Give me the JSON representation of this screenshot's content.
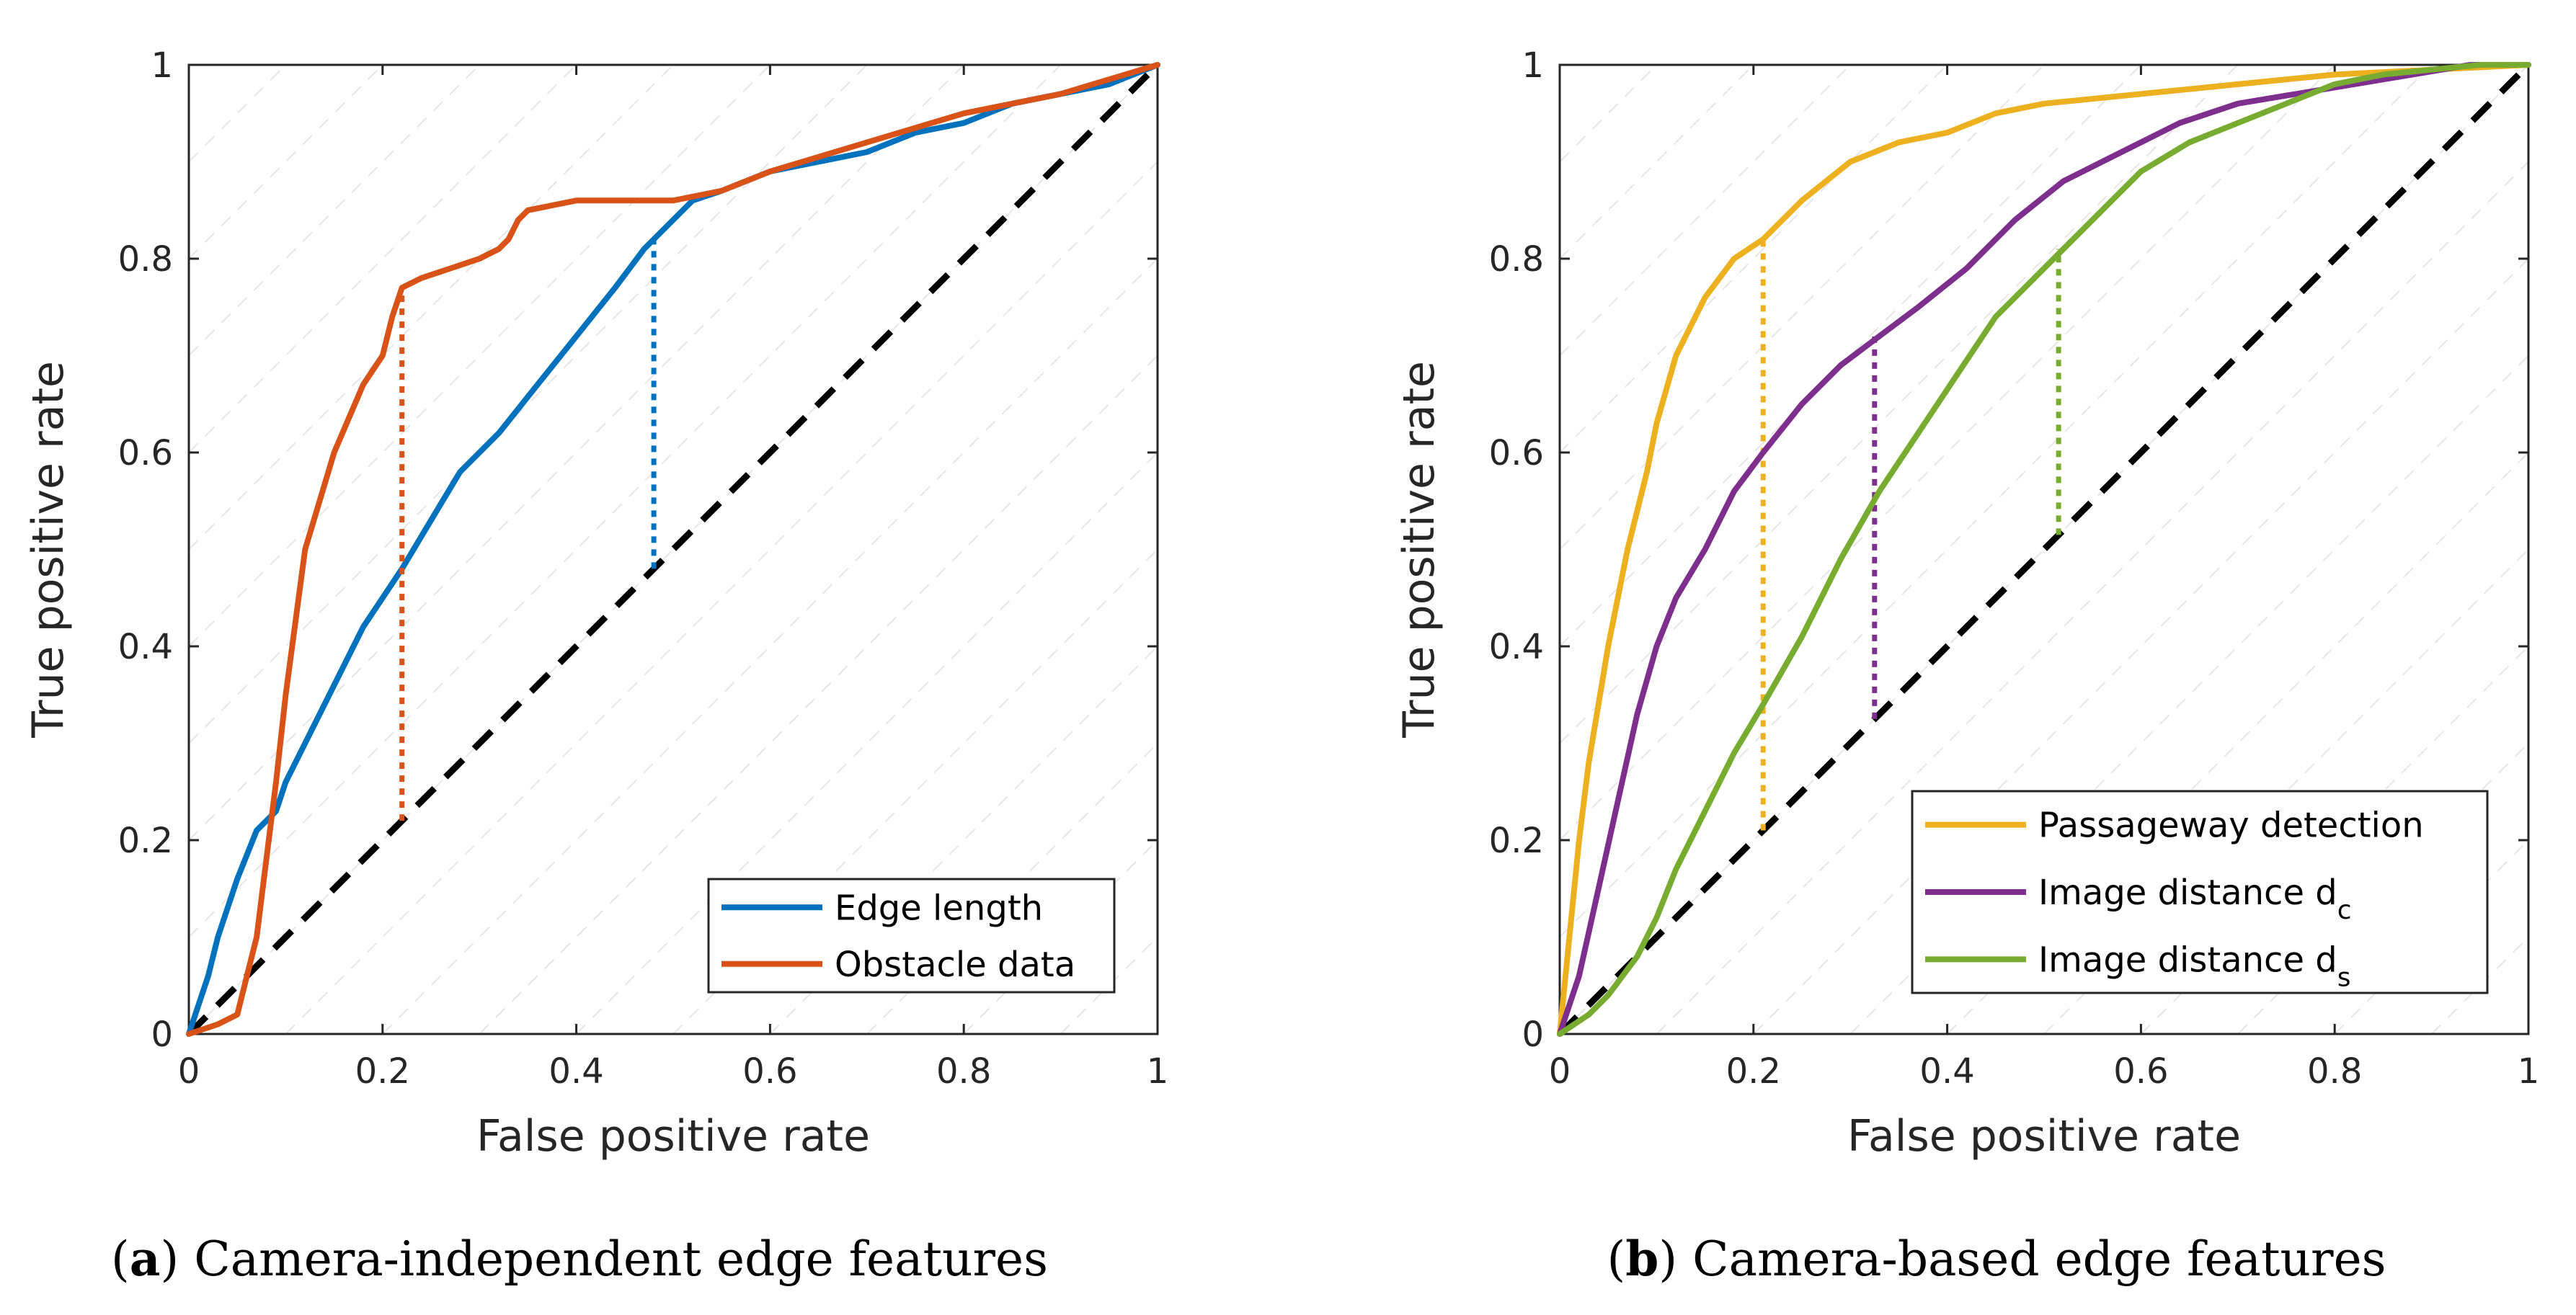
{
  "chart_data": [
    {
      "type": "line",
      "panel": "a",
      "caption_label": "a",
      "caption_text": "Camera-independent edge features",
      "xlabel": "False positive rate",
      "ylabel": "True positive rate",
      "xlim": [
        0,
        1
      ],
      "ylim": [
        0,
        1
      ],
      "xticks": [
        "0",
        "0.2",
        "0.4",
        "0.6",
        "0.8",
        "1"
      ],
      "yticks": [
        "0",
        "0.2",
        "0.4",
        "0.6",
        "0.8",
        "1"
      ],
      "legend_position": "bottom-right",
      "diagonal": {
        "x": [
          0,
          1
        ],
        "y": [
          0,
          1
        ],
        "color": "#000000",
        "style": "dashed"
      },
      "series": [
        {
          "name": "Edge length",
          "color": "#0072BD",
          "x": [
            0,
            0.01,
            0.02,
            0.03,
            0.05,
            0.07,
            0.09,
            0.1,
            0.12,
            0.15,
            0.18,
            0.2,
            0.22,
            0.25,
            0.28,
            0.32,
            0.36,
            0.4,
            0.44,
            0.47,
            0.48,
            0.5,
            0.52,
            0.55,
            0.6,
            0.65,
            0.7,
            0.75,
            0.8,
            0.85,
            0.9,
            0.95,
            1.0
          ],
          "y": [
            0,
            0.03,
            0.06,
            0.1,
            0.16,
            0.21,
            0.23,
            0.26,
            0.3,
            0.36,
            0.42,
            0.45,
            0.48,
            0.53,
            0.58,
            0.62,
            0.67,
            0.72,
            0.77,
            0.81,
            0.82,
            0.84,
            0.86,
            0.87,
            0.89,
            0.9,
            0.91,
            0.93,
            0.94,
            0.96,
            0.97,
            0.98,
            1.0
          ],
          "threshold": {
            "x": 0.48,
            "y_low": 0.48,
            "y_high": 0.82
          }
        },
        {
          "name": "Obstacle data",
          "color": "#D95319",
          "x": [
            0,
            0.03,
            0.05,
            0.06,
            0.07,
            0.08,
            0.09,
            0.1,
            0.12,
            0.15,
            0.18,
            0.2,
            0.21,
            0.22,
            0.24,
            0.27,
            0.3,
            0.32,
            0.33,
            0.34,
            0.35,
            0.4,
            0.45,
            0.5,
            0.55,
            0.6,
            0.7,
            0.8,
            0.9,
            1.0
          ],
          "y": [
            0,
            0.01,
            0.02,
            0.06,
            0.1,
            0.18,
            0.26,
            0.35,
            0.5,
            0.6,
            0.67,
            0.7,
            0.74,
            0.77,
            0.78,
            0.79,
            0.8,
            0.81,
            0.82,
            0.84,
            0.85,
            0.86,
            0.86,
            0.86,
            0.87,
            0.89,
            0.92,
            0.95,
            0.97,
            1.0
          ],
          "threshold": {
            "x": 0.22,
            "y_low": 0.22,
            "y_high": 0.77
          }
        }
      ]
    },
    {
      "type": "line",
      "panel": "b",
      "caption_label": "b",
      "caption_text": "Camera-based edge features",
      "xlabel": "False positive rate",
      "ylabel": "True positive rate",
      "xlim": [
        0,
        1
      ],
      "ylim": [
        0,
        1
      ],
      "xticks": [
        "0",
        "0.2",
        "0.4",
        "0.6",
        "0.8",
        "1"
      ],
      "yticks": [
        "0",
        "0.2",
        "0.4",
        "0.6",
        "0.8",
        "1"
      ],
      "legend_position": "bottom-right",
      "diagonal": {
        "x": [
          0,
          1
        ],
        "y": [
          0,
          1
        ],
        "color": "#000000",
        "style": "dashed"
      },
      "series": [
        {
          "name": "Passageway detection",
          "legend_text": "Passageway detection",
          "legend_sub": "",
          "color": "#EDB120",
          "x": [
            0,
            0.01,
            0.02,
            0.03,
            0.05,
            0.07,
            0.09,
            0.1,
            0.12,
            0.15,
            0.18,
            0.21,
            0.25,
            0.3,
            0.35,
            0.4,
            0.45,
            0.5,
            0.6,
            0.7,
            0.8,
            0.9,
            1.0
          ],
          "y": [
            0,
            0.1,
            0.2,
            0.28,
            0.4,
            0.5,
            0.58,
            0.63,
            0.7,
            0.76,
            0.8,
            0.82,
            0.86,
            0.9,
            0.92,
            0.93,
            0.95,
            0.96,
            0.97,
            0.98,
            0.99,
            0.995,
            1.0
          ],
          "threshold": {
            "x": 0.21,
            "y_low": 0.21,
            "y_high": 0.82
          }
        },
        {
          "name": "Image distance dc",
          "legend_text": "Image distance d",
          "legend_sub": "c",
          "color": "#7E2F8E",
          "x": [
            0,
            0.02,
            0.04,
            0.06,
            0.08,
            0.1,
            0.12,
            0.15,
            0.18,
            0.21,
            0.25,
            0.29,
            0.33,
            0.37,
            0.42,
            0.47,
            0.52,
            0.58,
            0.64,
            0.7,
            0.76,
            0.82,
            0.88,
            0.94,
            1.0
          ],
          "y": [
            0,
            0.06,
            0.15,
            0.24,
            0.33,
            0.4,
            0.45,
            0.5,
            0.56,
            0.6,
            0.65,
            0.69,
            0.72,
            0.75,
            0.79,
            0.84,
            0.88,
            0.91,
            0.94,
            0.96,
            0.97,
            0.98,
            0.99,
            1.0,
            1.0
          ],
          "threshold": {
            "x": 0.325,
            "y_low": 0.325,
            "y_high": 0.72
          }
        },
        {
          "name": "Image distance ds",
          "legend_text": "Image distance d",
          "legend_sub": "s",
          "color": "#77AC30",
          "x": [
            0,
            0.03,
            0.05,
            0.08,
            0.1,
            0.12,
            0.15,
            0.18,
            0.21,
            0.25,
            0.29,
            0.33,
            0.37,
            0.41,
            0.45,
            0.49,
            0.52,
            0.56,
            0.6,
            0.65,
            0.7,
            0.75,
            0.8,
            0.85,
            0.9,
            0.95,
            1.0
          ],
          "y": [
            0,
            0.02,
            0.04,
            0.08,
            0.12,
            0.17,
            0.23,
            0.29,
            0.34,
            0.41,
            0.49,
            0.56,
            0.62,
            0.68,
            0.74,
            0.78,
            0.81,
            0.85,
            0.89,
            0.92,
            0.94,
            0.96,
            0.98,
            0.99,
            0.995,
            1.0,
            1.0
          ],
          "threshold": {
            "x": 0.515,
            "y_low": 0.515,
            "y_high": 0.81
          }
        }
      ]
    }
  ]
}
